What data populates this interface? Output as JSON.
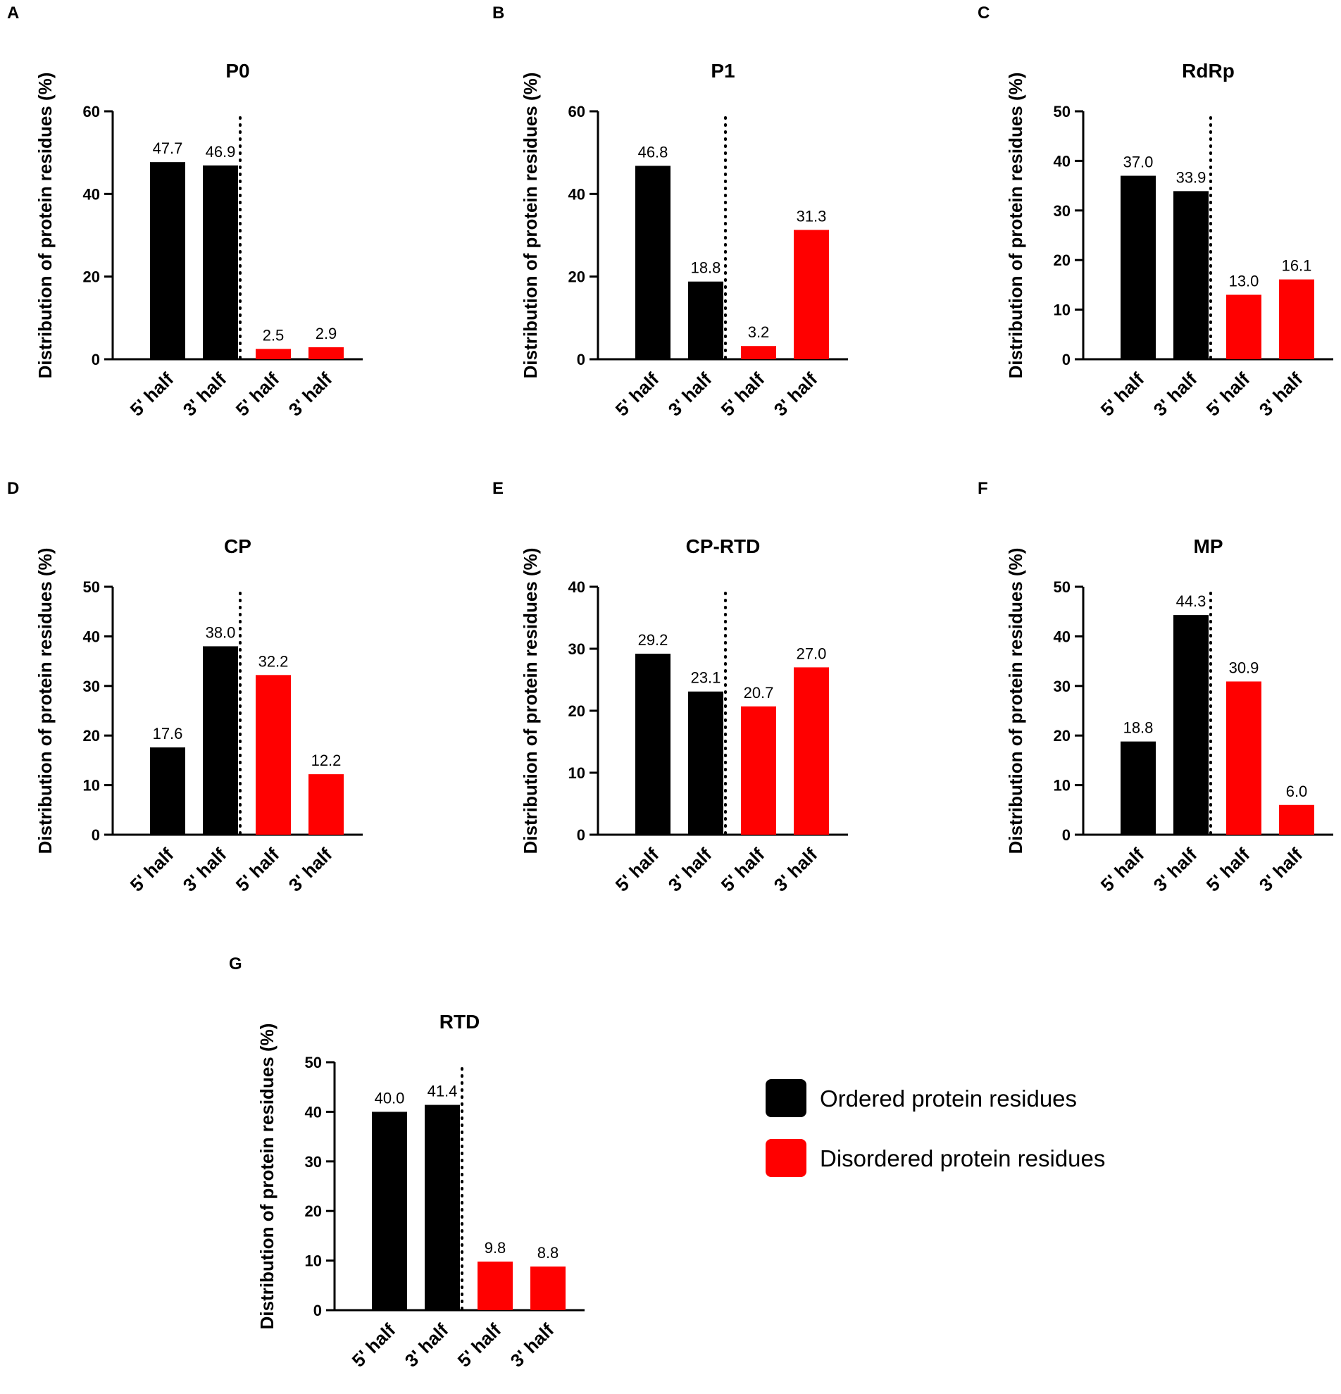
{
  "colors": {
    "ordered": "#000000",
    "disordered": "#ff0000",
    "axis": "#000000"
  },
  "legend": {
    "ordered_label": "Ordered protein residues",
    "disordered_label": "Disordered protein residues"
  },
  "chart_data": [
    {
      "panel": "A",
      "type": "bar",
      "title": "P0",
      "ylabel": "Distribution of protein residues (%)",
      "categories": [
        "5' half",
        "3' half",
        "5' half",
        "3' half"
      ],
      "series_per_bar": [
        "Ordered protein residues",
        "Ordered protein residues",
        "Disordered protein residues",
        "Disordered protein residues"
      ],
      "values": [
        47.7,
        46.9,
        2.5,
        2.9
      ],
      "labels": [
        "47.7",
        "46.9",
        "2.5",
        "2.9"
      ],
      "ylim": [
        0,
        60
      ],
      "yticks": [
        0,
        20,
        40,
        60
      ]
    },
    {
      "panel": "B",
      "type": "bar",
      "title": "P1",
      "ylabel": "Distribution of protein residues (%)",
      "categories": [
        "5' half",
        "3' half",
        "5' half",
        "3' half"
      ],
      "series_per_bar": [
        "Ordered protein residues",
        "Ordered protein residues",
        "Disordered protein residues",
        "Disordered protein residues"
      ],
      "values": [
        46.8,
        18.8,
        3.2,
        31.3
      ],
      "labels": [
        "46.8",
        "18.8",
        "3.2",
        "31.3"
      ],
      "ylim": [
        0,
        60
      ],
      "yticks": [
        0,
        20,
        40,
        60
      ]
    },
    {
      "panel": "C",
      "type": "bar",
      "title": "RdRp",
      "ylabel": "Distribution of protein residues (%)",
      "categories": [
        "5' half",
        "3' half",
        "5' half",
        "3' half"
      ],
      "series_per_bar": [
        "Ordered protein residues",
        "Ordered protein residues",
        "Disordered protein residues",
        "Disordered protein residues"
      ],
      "values": [
        37.0,
        33.9,
        13.0,
        16.1
      ],
      "labels": [
        "37.0",
        "33.9",
        "13.0",
        "16.1"
      ],
      "ylim": [
        0,
        50
      ],
      "yticks": [
        0,
        10,
        20,
        30,
        40,
        50
      ]
    },
    {
      "panel": "D",
      "type": "bar",
      "title": "CP",
      "ylabel": "Distribution of protein residues (%)",
      "categories": [
        "5' half",
        "3' half",
        "5' half",
        "3' half"
      ],
      "series_per_bar": [
        "Ordered protein residues",
        "Ordered protein residues",
        "Disordered protein residues",
        "Disordered protein residues"
      ],
      "values": [
        17.6,
        38.0,
        32.2,
        12.2
      ],
      "labels": [
        "17.6",
        "38.0",
        "32.2",
        "12.2"
      ],
      "ylim": [
        0,
        50
      ],
      "yticks": [
        0,
        10,
        20,
        30,
        40,
        50
      ]
    },
    {
      "panel": "E",
      "type": "bar",
      "title": "CP-RTD",
      "ylabel": "Distribution of protein residues (%)",
      "categories": [
        "5' half",
        "3' half",
        "5' half",
        "3' half"
      ],
      "series_per_bar": [
        "Ordered protein residues",
        "Ordered protein residues",
        "Disordered protein residues",
        "Disordered protein residues"
      ],
      "values": [
        29.2,
        23.1,
        20.7,
        27.0
      ],
      "labels": [
        "29.2",
        "23.1",
        "20.7",
        "27.0"
      ],
      "ylim": [
        0,
        40
      ],
      "yticks": [
        0,
        10,
        20,
        30,
        40
      ]
    },
    {
      "panel": "F",
      "type": "bar",
      "title": "MP",
      "ylabel": "Distribution of protein residues (%)",
      "categories": [
        "5' half",
        "3' half",
        "5' half",
        "3' half"
      ],
      "series_per_bar": [
        "Ordered protein residues",
        "Ordered protein residues",
        "Disordered protein residues",
        "Disordered protein residues"
      ],
      "values": [
        18.8,
        44.3,
        30.9,
        6.0
      ],
      "labels": [
        "18.8",
        "44.3",
        "30.9",
        "6.0"
      ],
      "ylim": [
        0,
        50
      ],
      "yticks": [
        0,
        10,
        20,
        30,
        40,
        50
      ]
    },
    {
      "panel": "G",
      "type": "bar",
      "title": "RTD",
      "ylabel": "Distribution of protein residues (%)",
      "categories": [
        "5' half",
        "3' half",
        "5' half",
        "3' half"
      ],
      "series_per_bar": [
        "Ordered protein residues",
        "Ordered protein residues",
        "Disordered protein residues",
        "Disordered protein residues"
      ],
      "values": [
        40.0,
        41.4,
        9.8,
        8.8
      ],
      "labels": [
        "40.0",
        "41.4",
        "9.8",
        "8.8"
      ],
      "ylim": [
        0,
        50
      ],
      "yticks": [
        0,
        10,
        20,
        30,
        40,
        50
      ]
    }
  ]
}
